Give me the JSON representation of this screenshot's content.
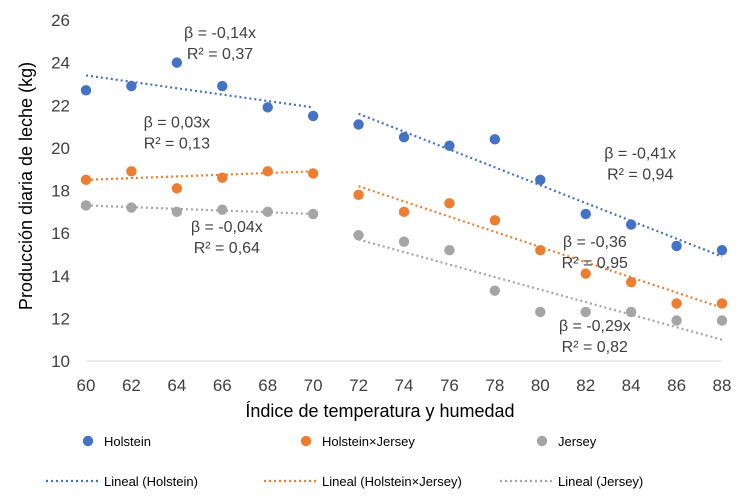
{
  "chart_data": {
    "type": "scatter",
    "xlabel": "Índice de temperatura y humedad",
    "ylabel": "Producción diaria de leche (kg)",
    "xlim": [
      60,
      88
    ],
    "ylim": [
      10,
      26
    ],
    "xticks": [
      "60",
      "62",
      "64",
      "66",
      "68",
      "70",
      "72",
      "74",
      "76",
      "78",
      "80",
      "82",
      "84",
      "86",
      "88"
    ],
    "yticks": [
      "10",
      "12",
      "14",
      "16",
      "18",
      "20",
      "22",
      "24",
      "26"
    ],
    "series": [
      {
        "name": "Holstein",
        "color": "#4472C4",
        "x": [
          60,
          62,
          64,
          66,
          68,
          70,
          72,
          74,
          76,
          78,
          80,
          82,
          84,
          86,
          88
        ],
        "y": [
          22.7,
          22.9,
          24.0,
          22.9,
          21.9,
          21.5,
          21.1,
          20.5,
          20.1,
          20.4,
          18.5,
          16.9,
          16.4,
          15.4,
          15.2
        ],
        "trend_segments": [
          {
            "x": [
              60,
              70
            ],
            "y": [
              23.4,
              21.9
            ]
          },
          {
            "x": [
              72,
              88
            ],
            "y": [
              21.6,
              14.9
            ]
          }
        ]
      },
      {
        "name": "Holstein×Jersey",
        "color": "#ED7D31",
        "x": [
          60,
          62,
          64,
          66,
          68,
          70,
          72,
          74,
          76,
          78,
          80,
          82,
          84,
          86,
          88
        ],
        "y": [
          18.5,
          18.9,
          18.1,
          18.6,
          18.9,
          18.8,
          17.8,
          17.0,
          17.4,
          16.6,
          15.2,
          14.1,
          13.7,
          12.7,
          12.7
        ],
        "trend_segments": [
          {
            "x": [
              60,
              70
            ],
            "y": [
              18.5,
              18.9
            ]
          },
          {
            "x": [
              72,
              88
            ],
            "y": [
              18.2,
              12.5
            ]
          }
        ]
      },
      {
        "name": "Jersey",
        "color": "#A5A5A5",
        "x": [
          60,
          62,
          64,
          66,
          68,
          70,
          72,
          74,
          76,
          78,
          80,
          82,
          84,
          86,
          88
        ],
        "y": [
          17.3,
          17.2,
          17.0,
          17.1,
          17.0,
          16.9,
          15.9,
          15.6,
          15.2,
          13.3,
          12.3,
          12.3,
          12.3,
          11.9,
          11.9
        ],
        "trend_segments": [
          {
            "x": [
              60,
              70
            ],
            "y": [
              17.3,
              16.9
            ]
          },
          {
            "x": [
              72,
              88
            ],
            "y": [
              15.7,
              11.0
            ]
          }
        ]
      }
    ],
    "annotations": [
      {
        "beta": "β = -0,14x",
        "r2": "R² = 0,37",
        "x": 65.9,
        "y": 25.15
      },
      {
        "beta": "β = 0,03x",
        "r2": "R² = 0,13",
        "x": 64.0,
        "y": 20.95
      },
      {
        "beta": "β = -0,04x",
        "r2": "R² = 0,64",
        "x": 66.2,
        "y": 16.05
      },
      {
        "beta": "β  = -0,41x",
        "r2": "R² = 0,94",
        "x": 84.4,
        "y": 19.5
      },
      {
        "beta": "β  = -0,36",
        "r2": "R² = 0,95",
        "x": 82.4,
        "y": 15.35
      },
      {
        "beta": "β  = -0,29x",
        "r2": "R² = 0,82",
        "x": 82.4,
        "y": 11.4
      }
    ],
    "legend": {
      "position": "bottom",
      "markers": [
        "Holstein",
        "Holstein×Jersey",
        "Jersey"
      ],
      "trendlines": [
        "Lineal (Holstein)",
        "Lineal (Holstein×Jersey)",
        "Lineal (Jersey)"
      ]
    }
  }
}
